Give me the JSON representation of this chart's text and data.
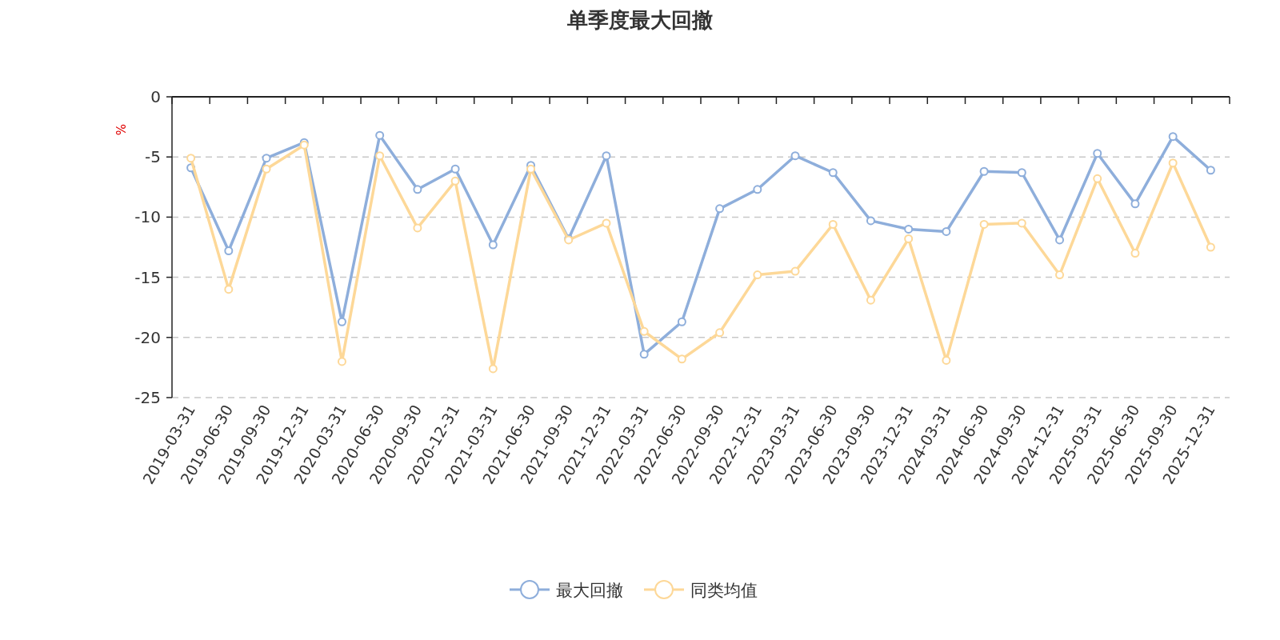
{
  "chart_data": {
    "type": "line",
    "title": "单季度最大回撤",
    "ylabel": "%",
    "categories": [
      "2019-03-31",
      "2019-06-30",
      "2019-09-30",
      "2019-12-31",
      "2020-03-31",
      "2020-06-30",
      "2020-09-30",
      "2020-12-31",
      "2021-03-31",
      "2021-06-30",
      "2021-09-30",
      "2021-12-31",
      "2022-03-31",
      "2022-06-30",
      "2022-09-30",
      "2022-12-31",
      "2023-03-31",
      "2023-06-30",
      "2023-09-30",
      "2023-12-31",
      "2024-03-31",
      "2024-06-30",
      "2024-09-30",
      "2024-12-31",
      "2025-03-31",
      "2025-06-30",
      "2025-09-30",
      "2025-12-31"
    ],
    "series": [
      {
        "name": "最大回撤",
        "color": "#8eaedb",
        "values": [
          -5.9,
          -12.8,
          -5.1,
          -3.8,
          -18.7,
          -3.2,
          -7.7,
          -6.0,
          -12.3,
          -5.7,
          -11.8,
          -4.9,
          -21.4,
          -18.7,
          -9.3,
          -7.7,
          -4.9,
          -6.3,
          -10.3,
          -11.0,
          -11.2,
          -6.2,
          -6.3,
          -11.9,
          -4.7,
          -8.9,
          -3.3,
          -6.1
        ]
      },
      {
        "name": "同类均值",
        "color": "#fdd898",
        "values": [
          -5.1,
          -16.0,
          -6.0,
          -4.0,
          -22.0,
          -4.9,
          -10.9,
          -7.0,
          -22.6,
          -6.0,
          -11.9,
          -10.5,
          -19.5,
          -21.8,
          -19.6,
          -14.8,
          -14.5,
          -10.6,
          -16.9,
          -11.8,
          -21.9,
          -10.6,
          -10.5,
          -14.8,
          -6.8,
          -13.0,
          -5.5,
          -12.5
        ]
      }
    ],
    "ylim": [
      -25,
      0
    ],
    "yticks": [
      0,
      -5,
      -10,
      -15,
      -20,
      -25
    ],
    "grid": "y",
    "legend": "bottom",
    "marker": "circle",
    "line_style": "solid"
  }
}
